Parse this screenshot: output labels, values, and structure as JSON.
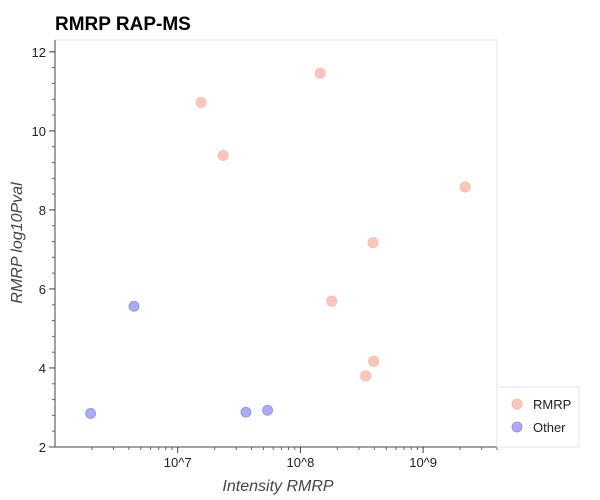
{
  "chart_data": {
    "type": "scatter",
    "title": "RMRP RAP-MS",
    "xlabel": "Intensity RMRP",
    "ylabel": "RMRP log10Pval",
    "x_scale": "log",
    "xlim": [
      1000000,
      4000000000
    ],
    "ylim": [
      2,
      12.3
    ],
    "x_ticks": [
      10000000,
      100000000,
      1000000000
    ],
    "x_tick_labels": [
      "10^7",
      "10^8",
      "10^9"
    ],
    "y_ticks": [
      2,
      4,
      6,
      8,
      10,
      12
    ],
    "y_tick_labels": [
      "2",
      "4",
      "6",
      "8",
      "10",
      "12"
    ],
    "grid": false,
    "legend_position": "bottom-right",
    "series": [
      {
        "name": "RMRP",
        "color": "#fcb3a4",
        "points": [
          {
            "x": 15500000,
            "y": 10.72
          },
          {
            "x": 23500000,
            "y": 9.38
          },
          {
            "x": 145000000,
            "y": 11.46
          },
          {
            "x": 2200000000,
            "y": 8.58
          },
          {
            "x": 390000000,
            "y": 7.17
          },
          {
            "x": 180000000,
            "y": 5.69
          },
          {
            "x": 395000000,
            "y": 4.17
          },
          {
            "x": 340000000,
            "y": 3.8
          }
        ]
      },
      {
        "name": "Other",
        "color": "#8f8ff2",
        "points": [
          {
            "x": 4400000,
            "y": 5.56
          },
          {
            "x": 1950000,
            "y": 2.85
          },
          {
            "x": 36000000,
            "y": 2.88
          },
          {
            "x": 54000000,
            "y": 2.93
          }
        ]
      }
    ]
  }
}
